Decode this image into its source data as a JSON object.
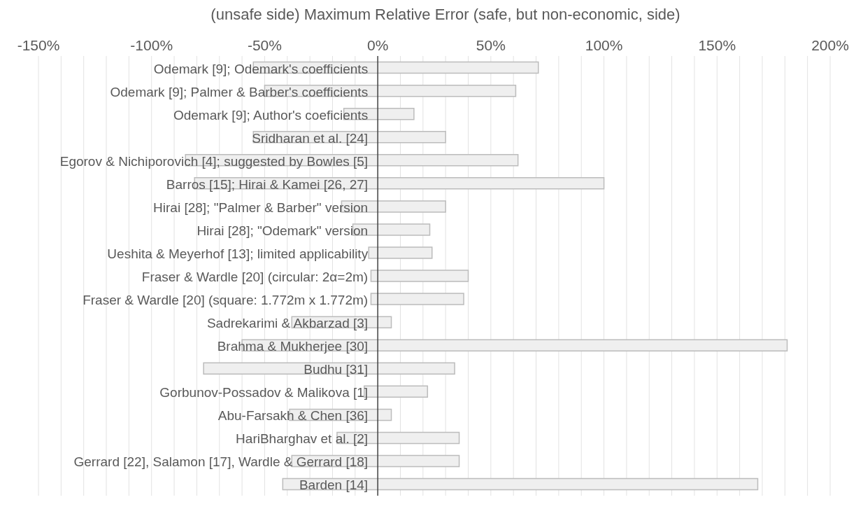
{
  "chart_data": {
    "type": "bar",
    "orientation": "horizontal",
    "xlabel": "(unsafe side) Maximum Relative Error (safe, but non-economic, side)",
    "categories": [
      "Odemark [9]; Odemark's coefficients",
      "Odemark [9]; Palmer & Barber's coefficients",
      "Odemark [9]; Author's coeficients",
      "Sridharan et al. [24]",
      "Egorov & Nichiporovich [4]; suggested by Bowles [5]",
      "Barros [15]; Hirai & Kamei [26, 27]",
      "Hirai [28]; \"Palmer & Barber\" version",
      "Hirai [28]; \"Odemark\" version",
      "Ueshita & Meyerhof [13]; limited applicability",
      "Fraser & Wardle [20] (circular: 2α=2m)",
      "Fraser & Wardle [20] (square: 1.772m x 1.772m)",
      "Sadrekarimi & Akbarzad [3]",
      "Brahma & Mukherjee [30]",
      "Budhu [31]",
      "Gorbunov-Possadov & Malikova [1]",
      "Abu-Farsakh & Chen [36]",
      "HariBharghav et al. [2]",
      "Gerrard [22], Salamon [17], Wardle & Gerrard [18]",
      "Barden [14]"
    ],
    "base": [
      -55,
      -50,
      -15,
      -55,
      -85,
      -81,
      -16,
      -11,
      -4,
      -3,
      -3,
      -38,
      -60,
      -77,
      -6,
      -39,
      -18,
      -38,
      -42
    ],
    "values": [
      126,
      111,
      31,
      85,
      147,
      181,
      46,
      34,
      28,
      43,
      41,
      44,
      241,
      111,
      28,
      45,
      54,
      74,
      210
    ],
    "color": "#efefef",
    "xlim": [
      -150,
      200
    ],
    "xticks": [
      {
        "value": -150,
        "label": "-150%"
      },
      {
        "value": -140,
        "label": null
      },
      {
        "value": -130,
        "label": null
      },
      {
        "value": -120,
        "label": null
      },
      {
        "value": -110,
        "label": null
      },
      {
        "value": -100,
        "label": "-100%"
      },
      {
        "value": -90,
        "label": null
      },
      {
        "value": -80,
        "label": null
      },
      {
        "value": -70,
        "label": null
      },
      {
        "value": -60,
        "label": null
      },
      {
        "value": -50,
        "label": "-50%"
      },
      {
        "value": -40,
        "label": null
      },
      {
        "value": -30,
        "label": null
      },
      {
        "value": -20,
        "label": null
      },
      {
        "value": -10,
        "label": null
      },
      {
        "value": 0,
        "label": "0%"
      },
      {
        "value": 10,
        "label": null
      },
      {
        "value": 20,
        "label": null
      },
      {
        "value": 30,
        "label": null
      },
      {
        "value": 40,
        "label": null
      },
      {
        "value": 50,
        "label": "50%"
      },
      {
        "value": 60,
        "label": null
      },
      {
        "value": 70,
        "label": null
      },
      {
        "value": 80,
        "label": null
      },
      {
        "value": 90,
        "label": null
      },
      {
        "value": 100,
        "label": "100%"
      },
      {
        "value": 110,
        "label": null
      },
      {
        "value": 120,
        "label": null
      },
      {
        "value": 130,
        "label": null
      },
      {
        "value": 140,
        "label": null
      },
      {
        "value": 150,
        "label": "150%"
      },
      {
        "value": 160,
        "label": null
      },
      {
        "value": 170,
        "label": null
      },
      {
        "value": 180,
        "label": null
      },
      {
        "value": 190,
        "label": null
      },
      {
        "value": 200,
        "label": "200%"
      }
    ],
    "grid": "x"
  }
}
